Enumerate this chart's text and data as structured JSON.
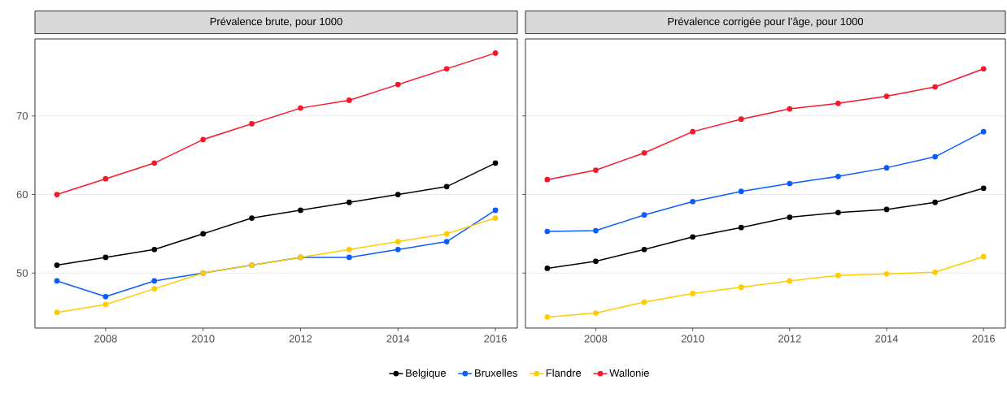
{
  "chart_data": [
    {
      "type": "line",
      "title": "Prévalence brute, pour 1000",
      "x": [
        2007,
        2008,
        2009,
        2010,
        2011,
        2012,
        2013,
        2014,
        2015,
        2016
      ],
      "xlim": [
        2006.55,
        2016.45
      ],
      "ylim": [
        43,
        79.8
      ],
      "xticks": [
        2008,
        2010,
        2012,
        2014,
        2016
      ],
      "yticks": [
        50,
        60,
        70
      ],
      "grid": "y",
      "marker": "circle",
      "line_style": "solid",
      "legend": "bottom",
      "series": [
        {
          "name": "Belgique",
          "color": "#000000",
          "values": [
            51,
            52,
            53,
            55,
            57,
            58,
            59,
            60,
            61,
            64
          ]
        },
        {
          "name": "Bruxelles",
          "color": "#0a5cff",
          "values": [
            49,
            47,
            49,
            50,
            51,
            52,
            52,
            53,
            54,
            58
          ]
        },
        {
          "name": "Flandre",
          "color": "#ffcc00",
          "values": [
            45,
            46,
            48,
            50,
            51,
            52,
            53,
            54,
            55,
            57
          ]
        },
        {
          "name": "Wallonie",
          "color": "#f8172a",
          "values": [
            60,
            62,
            64,
            67,
            69,
            71,
            72,
            74,
            76,
            78
          ]
        }
      ]
    },
    {
      "type": "line",
      "title": "Prévalence corrigée pour l’âge, pour 1000",
      "x": [
        2007,
        2008,
        2009,
        2010,
        2011,
        2012,
        2013,
        2014,
        2015,
        2016
      ],
      "xlim": [
        2006.55,
        2016.45
      ],
      "ylim": [
        43,
        79.8
      ],
      "xticks": [
        2008,
        2010,
        2012,
        2014,
        2016
      ],
      "yticks": [
        50,
        60,
        70
      ],
      "tick_labels": "x",
      "grid": "y",
      "marker": "circle",
      "line_style": "solid",
      "series": [
        {
          "color": "#000000",
          "values": [
            50.6,
            51.5,
            53.0,
            54.6,
            55.8,
            57.1,
            57.7,
            58.1,
            59.0,
            60.8
          ]
        },
        {
          "color": "#0a5cff",
          "values": [
            55.3,
            55.4,
            57.4,
            59.1,
            60.4,
            61.4,
            62.3,
            63.4,
            64.8,
            68.0
          ]
        },
        {
          "color": "#ffcc00",
          "values": [
            44.4,
            44.9,
            46.3,
            47.4,
            48.2,
            49.0,
            49.7,
            49.9,
            50.1,
            52.1
          ]
        },
        {
          "color": "#f8172a",
          "values": [
            61.9,
            63.1,
            65.3,
            68.0,
            69.6,
            70.9,
            71.6,
            72.5,
            73.7,
            76.0
          ]
        }
      ]
    }
  ]
}
